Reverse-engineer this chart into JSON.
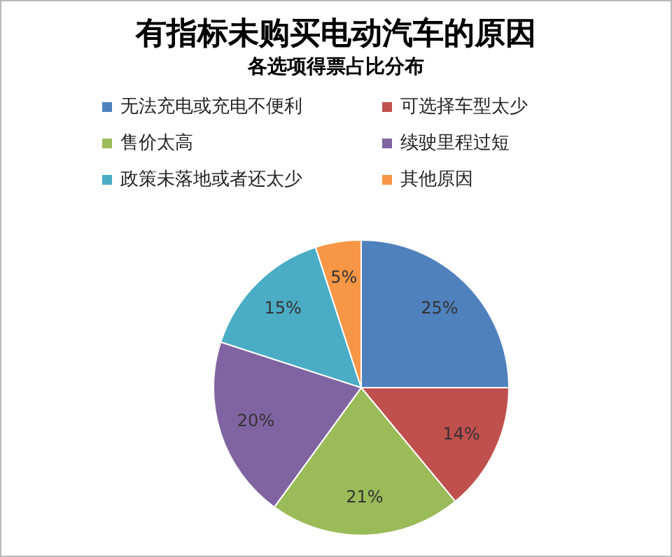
{
  "chart_data": {
    "type": "pie",
    "title": "有指标未购买电动汽车的原因",
    "subtitle": "各选项得票占比分布",
    "categories": [
      "无法充电或充电不便利",
      "可选择车型太少",
      "售价太高",
      "续驶里程过短",
      "政策未落地或者还太少",
      "其他原因"
    ],
    "values": [
      25,
      14,
      21,
      20,
      15,
      5
    ],
    "colors": [
      "#4f81bd",
      "#c0504d",
      "#9bbb59",
      "#8064a2",
      "#4bacc6",
      "#f79646"
    ],
    "value_labels": [
      "25%",
      "14%",
      "21%",
      "20%",
      "15%",
      "5%"
    ],
    "legend": "top"
  }
}
